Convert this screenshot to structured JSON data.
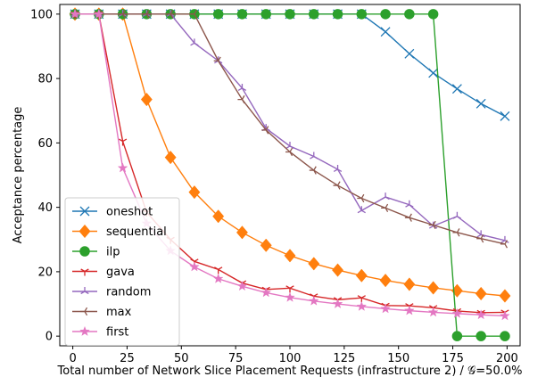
{
  "chart_data": {
    "type": "line",
    "title": "",
    "xlabel": "Total number of Network Slice Placement Requests (infrastructure 2) / 𝒢=50.0%",
    "ylabel": "Acceptance percentage",
    "xlim": [
      -6,
      206
    ],
    "ylim": [
      -3,
      103
    ],
    "x_ticks": [
      0,
      25,
      50,
      75,
      100,
      125,
      150,
      175,
      200
    ],
    "y_ticks": [
      0,
      20,
      40,
      60,
      80,
      100
    ],
    "grid": false,
    "legend": "lower-left",
    "x": [
      1,
      12,
      23,
      34,
      45,
      56,
      67,
      78,
      89,
      100,
      111,
      122,
      133,
      144,
      155,
      166,
      177,
      188,
      199
    ],
    "series": [
      {
        "name": "oneshot",
        "color": "#1f77b4",
        "marker": "x",
        "values": [
          100,
          100,
          100,
          100,
          100,
          100,
          100,
          100,
          100,
          100,
          100,
          100,
          100,
          94.5,
          87.7,
          81.7,
          76.8,
          72.2,
          68.3
        ]
      },
      {
        "name": "sequential",
        "color": "#ff7f0e",
        "marker": "diamond",
        "values": [
          100,
          100,
          100,
          73.5,
          55.5,
          44.7,
          37.2,
          32.2,
          28.2,
          25,
          22.5,
          20.5,
          18.8,
          17.3,
          16.1,
          15,
          14.1,
          13.2,
          12.5
        ]
      },
      {
        "name": "ilp",
        "color": "#2ca02c",
        "marker": "circle",
        "values": [
          100,
          100,
          100,
          100,
          100,
          100,
          100,
          100,
          100,
          100,
          100,
          100,
          100,
          100,
          100,
          100,
          0,
          0,
          0
        ]
      },
      {
        "name": "gava",
        "color": "#d62728",
        "marker": "tri_down",
        "values": [
          100,
          100,
          60.5,
          38.5,
          30,
          23.2,
          20.7,
          16.5,
          14.5,
          14.9,
          12.4,
          11.3,
          11.9,
          9.5,
          9.4,
          8.8,
          7.8,
          7.3,
          7.4
        ]
      },
      {
        "name": "random",
        "color": "#9467bd",
        "marker": "tri_up",
        "values": [
          100,
          100,
          100,
          100,
          100,
          91,
          85.5,
          77,
          64.5,
          59,
          55.8,
          51.8,
          39,
          43.2,
          40.8,
          34.2,
          37.2,
          31.5,
          29.7
        ]
      },
      {
        "name": "max",
        "color": "#8c564b",
        "marker": "tri_left",
        "values": [
          100,
          100,
          100,
          100,
          100,
          100,
          85.5,
          73.5,
          64,
          57.2,
          51.5,
          46.8,
          42.8,
          39.8,
          36.8,
          34.5,
          32.2,
          30.3,
          28.6
        ]
      },
      {
        "name": "first",
        "color": "#e377c2",
        "marker": "star",
        "values": [
          100,
          100,
          52.2,
          35,
          26.5,
          21.5,
          17.8,
          15.5,
          13.5,
          12,
          10.9,
          10,
          9.2,
          8.5,
          7.9,
          7.4,
          7,
          6.6,
          6.3
        ]
      }
    ]
  }
}
